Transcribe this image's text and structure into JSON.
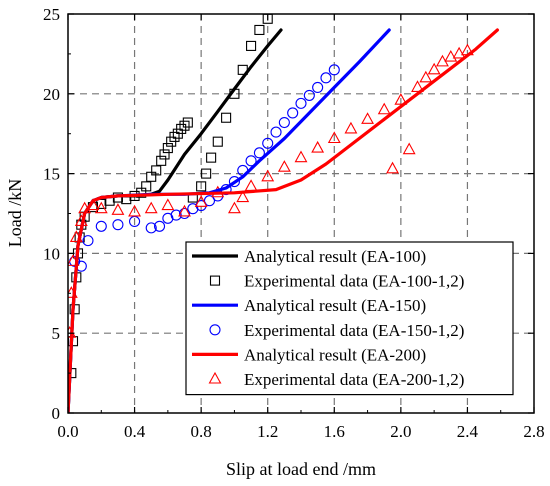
{
  "chart_data": {
    "type": "line",
    "xlabel": "Slip at load end /mm",
    "ylabel": "Load /kN",
    "xlim": [
      0,
      2.8
    ],
    "ylim": [
      0,
      25
    ],
    "xticks": [
      "0.0",
      "0.4",
      "0.8",
      "1.2",
      "1.6",
      "2.0",
      "2.4",
      "2.8"
    ],
    "yticks": [
      "0",
      "5",
      "10",
      "15",
      "20",
      "25"
    ],
    "grid": "dashed, major ticks",
    "legend_position": "lower-right, inside plot",
    "series": [
      {
        "name": "Analytical result (EA-100)",
        "kind": "line",
        "color": "#000000",
        "x": [
          0,
          0.03,
          0.06,
          0.1,
          0.15,
          0.2,
          0.3,
          0.4,
          0.5,
          0.55,
          0.6,
          0.7,
          0.8,
          0.9,
          1.0,
          1.1,
          1.2,
          1.28
        ],
        "y": [
          0,
          6.5,
          10.5,
          12.5,
          13.3,
          13.5,
          13.6,
          13.6,
          13.7,
          13.9,
          14.6,
          16.2,
          17.5,
          18.9,
          20.3,
          21.7,
          23.0,
          24.0
        ]
      },
      {
        "name": "Experimental data (EA-100-1,2)",
        "kind": "scatter",
        "marker": "square",
        "color": "#000000",
        "x": [
          0.02,
          0.03,
          0.04,
          0.05,
          0.06,
          0.07,
          0.08,
          0.1,
          0.15,
          0.2,
          0.25,
          0.3,
          0.35,
          0.4,
          0.44,
          0.47,
          0.5,
          0.53,
          0.56,
          0.58,
          0.6,
          0.62,
          0.64,
          0.66,
          0.68,
          0.7,
          0.72,
          0.75,
          0.8,
          0.83,
          0.86,
          0.9,
          0.95,
          1.0,
          1.05,
          1.1,
          1.15,
          1.2
        ],
        "y": [
          2.5,
          4.5,
          6.5,
          8.5,
          10.0,
          11.0,
          11.8,
          12.3,
          12.9,
          13.1,
          13.3,
          13.5,
          13.4,
          13.6,
          13.8,
          14.2,
          14.8,
          15.2,
          15.8,
          16.2,
          16.6,
          17.0,
          17.3,
          17.5,
          17.8,
          18.0,
          18.2,
          13.5,
          14.2,
          15.0,
          16.0,
          17.0,
          18.5,
          20.0,
          21.5,
          23.0,
          24.0,
          24.7
        ]
      },
      {
        "name": "Analytical result (EA-150)",
        "kind": "line",
        "color": "#0000ff",
        "x": [
          0,
          0.03,
          0.06,
          0.1,
          0.15,
          0.2,
          0.3,
          0.5,
          0.7,
          0.85,
          0.95,
          1.05,
          1.15,
          1.3,
          1.45,
          1.6,
          1.75,
          1.93
        ],
        "y": [
          0,
          6.5,
          10.5,
          12.5,
          13.3,
          13.5,
          13.6,
          13.7,
          13.7,
          13.8,
          14.1,
          14.8,
          15.8,
          17.2,
          18.8,
          20.4,
          22.0,
          24.0
        ]
      },
      {
        "name": "Experimental data (EA-150-1,2)",
        "kind": "scatter",
        "marker": "circle",
        "color": "#0000ff",
        "x": [
          0.04,
          0.08,
          0.12,
          0.2,
          0.3,
          0.4,
          0.5,
          0.55,
          0.6,
          0.65,
          0.7,
          0.75,
          0.8,
          0.85,
          0.9,
          0.95,
          1.0,
          1.05,
          1.1,
          1.15,
          1.2,
          1.25,
          1.3,
          1.35,
          1.4,
          1.45,
          1.5,
          1.55,
          1.6
        ],
        "y": [
          9.5,
          9.2,
          10.8,
          11.7,
          11.8,
          12.0,
          11.6,
          11.7,
          12.2,
          12.4,
          12.5,
          12.8,
          13.0,
          13.3,
          13.6,
          14.0,
          14.5,
          15.2,
          15.8,
          16.3,
          16.9,
          17.6,
          18.2,
          18.8,
          19.4,
          19.9,
          20.4,
          21.0,
          21.5
        ]
      },
      {
        "name": "Analytical result (EA-200)",
        "kind": "line",
        "color": "#ff0000",
        "x": [
          0,
          0.03,
          0.06,
          0.1,
          0.15,
          0.2,
          0.3,
          0.6,
          1.0,
          1.25,
          1.4,
          1.55,
          1.7,
          1.9,
          2.1,
          2.3,
          2.45,
          2.58
        ],
        "y": [
          0,
          6.5,
          10.5,
          12.5,
          13.3,
          13.5,
          13.6,
          13.7,
          13.8,
          14.0,
          14.6,
          15.6,
          16.8,
          18.4,
          20.0,
          21.6,
          22.8,
          24.0
        ]
      },
      {
        "name": "Experimental data (EA-200-1,2)",
        "kind": "scatter",
        "marker": "triangle",
        "color": "#ff0000",
        "x": [
          0.01,
          0.02,
          0.03,
          0.05,
          0.08,
          0.1,
          0.15,
          0.2,
          0.3,
          0.4,
          0.5,
          0.6,
          0.7,
          0.8,
          0.9,
          1.0,
          1.05,
          1.1,
          1.2,
          1.3,
          1.4,
          1.5,
          1.6,
          1.7,
          1.8,
          1.9,
          2.0,
          2.1,
          2.15,
          2.2,
          2.25,
          2.3,
          2.35,
          2.4,
          1.95,
          2.05
        ],
        "y": [
          5.0,
          7.5,
          9.5,
          11.0,
          12.0,
          12.8,
          13.0,
          12.8,
          12.7,
          12.6,
          12.8,
          13.0,
          12.6,
          13.2,
          13.8,
          12.8,
          13.5,
          14.2,
          14.8,
          15.4,
          16.0,
          16.6,
          17.2,
          17.8,
          18.4,
          19.0,
          19.6,
          20.4,
          21.0,
          21.5,
          22.0,
          22.3,
          22.5,
          22.7,
          15.3,
          16.5
        ]
      }
    ]
  }
}
